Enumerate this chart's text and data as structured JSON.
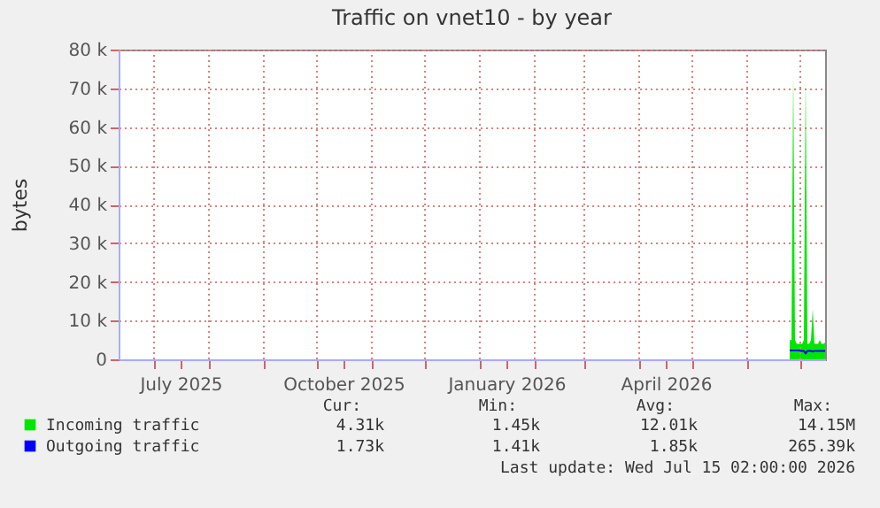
{
  "chart_data": {
    "type": "area",
    "title": "Traffic on vnet10 - by year",
    "ylabel": "bytes",
    "x": [
      "2026-06-25",
      "2026-06-26",
      "2026-06-27",
      "2026-06-28",
      "2026-06-29",
      "2026-06-30",
      "2026-07-01",
      "2026-07-02",
      "2026-07-03",
      "2026-07-04",
      "2026-07-05",
      "2026-07-06",
      "2026-07-07",
      "2026-07-08",
      "2026-07-09",
      "2026-07-10",
      "2026-07-11",
      "2026-07-12",
      "2026-07-13",
      "2026-07-14",
      "2026-07-15"
    ],
    "series": [
      {
        "name": "Incoming traffic",
        "color": "#00e600",
        "values": [
          5000,
          5000,
          74000,
          5000,
          4000,
          4000,
          4000,
          4000,
          5000,
          73000,
          4000,
          4000,
          5000,
          13000,
          4000,
          4000,
          4000,
          5000,
          4000,
          4000,
          4300
        ]
      },
      {
        "name": "Outgoing traffic",
        "type": "line",
        "line_style": "solid",
        "color": "#0000ff",
        "values": [
          2300,
          2300,
          2300,
          2300,
          2300,
          2300,
          2200,
          2200,
          2200,
          1500,
          2200,
          2200,
          2200,
          2000,
          2200,
          2200,
          2200,
          2200,
          2200,
          2200,
          2200
        ]
      }
    ],
    "xlim": [
      "2025-06-11",
      "2026-07-15"
    ],
    "xticks": [
      {
        "value": "2025-07-01",
        "label": null
      },
      {
        "value": "2025-07-16",
        "label": "July 2025"
      },
      {
        "value": "2025-08-01",
        "label": null
      },
      {
        "value": "2025-09-01",
        "label": null
      },
      {
        "value": "2025-10-01",
        "label": null
      },
      {
        "value": "2025-10-16",
        "label": "October 2025"
      },
      {
        "value": "2025-11-01",
        "label": null
      },
      {
        "value": "2025-12-01",
        "label": null
      },
      {
        "value": "2026-01-01",
        "label": null
      },
      {
        "value": "2026-01-16",
        "label": "January 2026"
      },
      {
        "value": "2026-02-01",
        "label": null
      },
      {
        "value": "2026-03-01",
        "label": null
      },
      {
        "value": "2026-04-01",
        "label": null
      },
      {
        "value": "2026-04-16",
        "label": "April 2026"
      },
      {
        "value": "2026-05-01",
        "label": null
      },
      {
        "value": "2026-06-01",
        "label": null
      },
      {
        "value": "2026-07-01",
        "label": null
      }
    ],
    "ylim": [
      0,
      80000
    ],
    "yticks": [
      {
        "value": 0,
        "label": "0"
      },
      {
        "value": 10000,
        "label": "10 k"
      },
      {
        "value": 20000,
        "label": "20 k"
      },
      {
        "value": 30000,
        "label": "30 k"
      },
      {
        "value": 40000,
        "label": "40 k"
      },
      {
        "value": 50000,
        "label": "50 k"
      },
      {
        "value": 60000,
        "label": "60 k"
      },
      {
        "value": 70000,
        "label": "70 k"
      },
      {
        "value": 80000,
        "label": "80 k"
      }
    ],
    "grid": true,
    "legend": "bottom left",
    "annotations": [
      "Cur:",
      "Min:",
      "Avg:",
      "Max:",
      "4.31k",
      "1.45k",
      "12.01k",
      "14.15M",
      "1.73k",
      "1.41k",
      "1.85k",
      "265.39k",
      "Last update: Wed Jul 15 02:00:00 2026"
    ]
  }
}
